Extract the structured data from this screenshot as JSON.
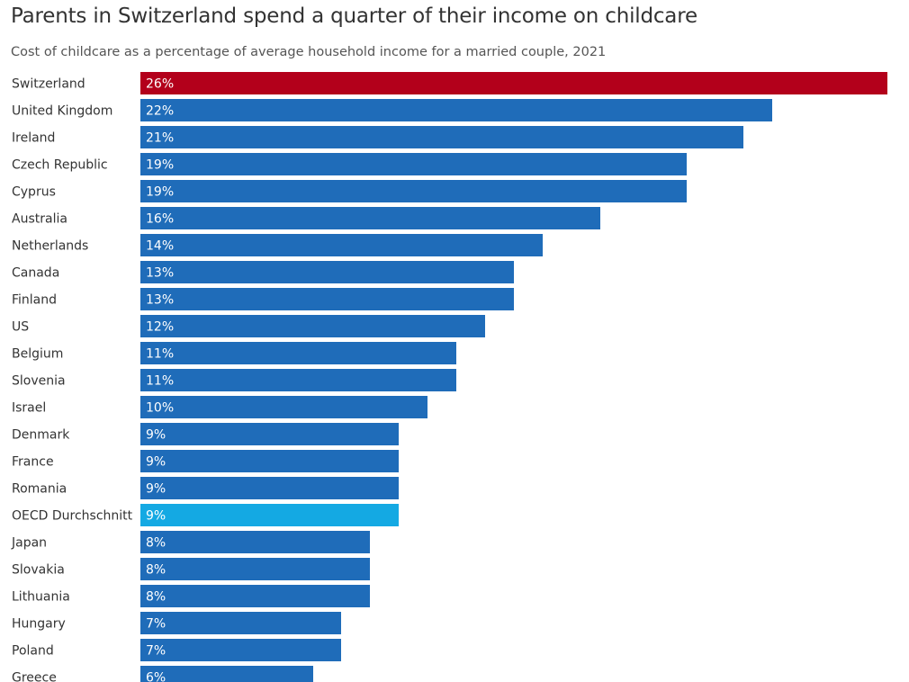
{
  "chart_data": {
    "type": "bar",
    "orientation": "horizontal",
    "title": "Parents in Switzerland spend a quarter of their income on childcare",
    "subtitle": "Cost of childcare as a percentage of average household income for a married couple, 2021",
    "xlabel": "",
    "ylabel": "",
    "grid": false,
    "value_suffix": "%",
    "xlim": [
      0,
      26
    ],
    "categories": [
      "Switzerland",
      "United Kingdom",
      "Ireland",
      "Czech Republic",
      "Cyprus",
      "Australia",
      "Netherlands",
      "Canada",
      "Finland",
      "US",
      "Belgium",
      "Slovenia",
      "Israel",
      "Denmark",
      "France",
      "Romania",
      "OECD Durchschnitt",
      "Japan",
      "Slovakia",
      "Lithuania",
      "Hungary",
      "Poland",
      "Greece"
    ],
    "values": [
      26,
      22,
      21,
      19,
      19,
      16,
      14,
      13,
      13,
      12,
      11,
      11,
      10,
      9,
      9,
      9,
      9,
      8,
      8,
      8,
      7,
      7,
      6
    ],
    "colors": {
      "default": "#1f6cb9",
      "highlight": "#b3001b",
      "average": "#14a9e3"
    },
    "highlight_category": "Switzerland",
    "average_category": "OECD Durchschnitt"
  }
}
